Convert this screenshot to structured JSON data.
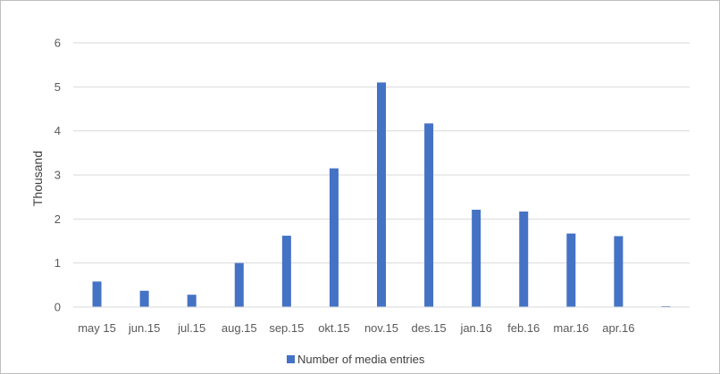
{
  "chart_data": {
    "type": "bar",
    "categories": [
      "may 15",
      "jun.15",
      "jul.15",
      "aug.15",
      "sep.15",
      "okt.15",
      "nov.15",
      "des.15",
      "jan.16",
      "feb.16",
      "mar.16",
      "apr.16",
      ""
    ],
    "series": [
      {
        "name": "Number of media entries",
        "values": [
          0.58,
          0.37,
          0.28,
          1.0,
          1.62,
          3.15,
          5.1,
          4.17,
          2.21,
          2.17,
          1.67,
          1.61,
          0.02
        ]
      }
    ],
    "ylabel": "Thousand",
    "xlabel": "",
    "title": "",
    "ylim": [
      0,
      6
    ],
    "yticks": [
      0,
      1,
      2,
      3,
      4,
      5,
      6
    ],
    "grid": true,
    "legend_position": "bottom",
    "bar_color": "#4472c4",
    "grid_color": "#d9d9d9"
  }
}
